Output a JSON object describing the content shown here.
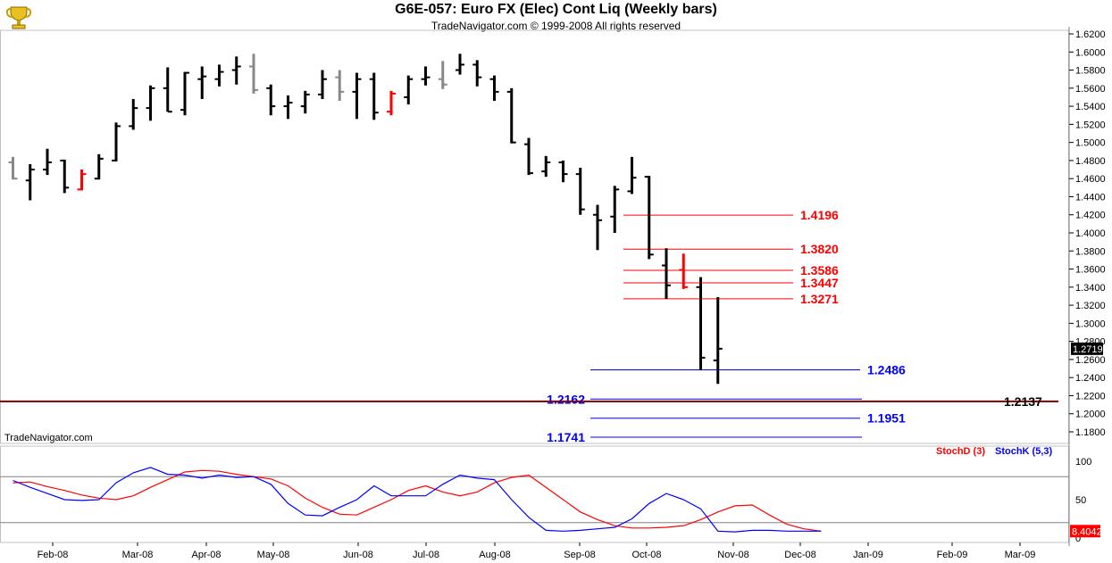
{
  "header": {
    "title": "G6E-057:  Euro FX (Elec) Cont Liq  (Weekly bars)",
    "subtitle": "TradeNavigator.com © 1999-2008 All rights reserved",
    "watermark": "TradeNavigator.com",
    "logo_icon": "trophy-icon"
  },
  "chart_data": [
    {
      "type": "ohlc",
      "yrange": [
        1.17,
        1.625
      ],
      "y_ticks": [
        "1.6200",
        "1.6000",
        "1.5800",
        "1.5600",
        "1.5400",
        "1.5200",
        "1.5000",
        "1.4800",
        "1.4600",
        "1.4400",
        "1.4200",
        "1.4000",
        "1.3800",
        "1.3600",
        "1.3400",
        "1.3200",
        "1.3000",
        "1.2800",
        "1.2600",
        "1.2400",
        "1.2200",
        "1.2000",
        "1.1800"
      ],
      "x_ticks": [
        "Feb-08",
        "Mar-08",
        "Apr-08",
        "May-08",
        "Jun-08",
        "Jul-08",
        "Aug-08",
        "Sep-08",
        "Oct-08",
        "Nov-08",
        "Dec-08",
        "Jan-09",
        "Feb-09",
        "Mar-09"
      ],
      "last_price": "1.2719",
      "bar_colors": {
        "up": "#000000",
        "down": "#000000",
        "gray": "#888888",
        "red": "#ff0000"
      },
      "bars": [
        {
          "o": 1.478,
          "h": 1.484,
          "l": 1.459,
          "c": 1.46,
          "color": "gray"
        },
        {
          "o": 1.458,
          "h": 1.476,
          "l": 1.436,
          "c": 1.47,
          "color": "black"
        },
        {
          "o": 1.47,
          "h": 1.493,
          "l": 1.464,
          "c": 1.478,
          "color": "black"
        },
        {
          "o": 1.48,
          "h": 1.481,
          "l": 1.444,
          "c": 1.45,
          "color": "black"
        },
        {
          "o": 1.448,
          "h": 1.47,
          "l": 1.447,
          "c": 1.465,
          "color": "red"
        },
        {
          "o": 1.46,
          "h": 1.487,
          "l": 1.459,
          "c": 1.482,
          "color": "black"
        },
        {
          "o": 1.48,
          "h": 1.522,
          "l": 1.479,
          "c": 1.518,
          "color": "black"
        },
        {
          "o": 1.518,
          "h": 1.548,
          "l": 1.514,
          "c": 1.538,
          "color": "black"
        },
        {
          "o": 1.538,
          "h": 1.563,
          "l": 1.524,
          "c": 1.56,
          "color": "black"
        },
        {
          "o": 1.56,
          "h": 1.583,
          "l": 1.534,
          "c": 1.534,
          "color": "black"
        },
        {
          "o": 1.536,
          "h": 1.578,
          "l": 1.53,
          "c": 1.577,
          "color": "black"
        },
        {
          "o": 1.57,
          "h": 1.584,
          "l": 1.548,
          "c": 1.573,
          "color": "black"
        },
        {
          "o": 1.57,
          "h": 1.586,
          "l": 1.562,
          "c": 1.578,
          "color": "black"
        },
        {
          "o": 1.58,
          "h": 1.595,
          "l": 1.564,
          "c": 1.584,
          "color": "black"
        },
        {
          "o": 1.584,
          "h": 1.598,
          "l": 1.554,
          "c": 1.558,
          "color": "gray"
        },
        {
          "o": 1.56,
          "h": 1.564,
          "l": 1.53,
          "c": 1.54,
          "color": "black"
        },
        {
          "o": 1.54,
          "h": 1.552,
          "l": 1.526,
          "c": 1.544,
          "color": "black"
        },
        {
          "o": 1.54,
          "h": 1.557,
          "l": 1.532,
          "c": 1.553,
          "color": "black"
        },
        {
          "o": 1.553,
          "h": 1.58,
          "l": 1.548,
          "c": 1.57,
          "color": "black"
        },
        {
          "o": 1.572,
          "h": 1.58,
          "l": 1.546,
          "c": 1.556,
          "color": "gray"
        },
        {
          "o": 1.556,
          "h": 1.577,
          "l": 1.526,
          "c": 1.57,
          "color": "black"
        },
        {
          "o": 1.57,
          "h": 1.577,
          "l": 1.525,
          "c": 1.533,
          "color": "black"
        },
        {
          "o": 1.534,
          "h": 1.557,
          "l": 1.53,
          "c": 1.554,
          "color": "red"
        },
        {
          "o": 1.55,
          "h": 1.574,
          "l": 1.542,
          "c": 1.57,
          "color": "black"
        },
        {
          "o": 1.57,
          "h": 1.584,
          "l": 1.563,
          "c": 1.572,
          "color": "black"
        },
        {
          "o": 1.57,
          "h": 1.59,
          "l": 1.559,
          "c": 1.564,
          "color": "gray"
        },
        {
          "o": 1.58,
          "h": 1.598,
          "l": 1.575,
          "c": 1.586,
          "color": "black"
        },
        {
          "o": 1.586,
          "h": 1.591,
          "l": 1.562,
          "c": 1.572,
          "color": "black"
        },
        {
          "o": 1.57,
          "h": 1.574,
          "l": 1.546,
          "c": 1.556,
          "color": "black"
        },
        {
          "o": 1.556,
          "h": 1.56,
          "l": 1.499,
          "c": 1.5,
          "color": "black"
        },
        {
          "o": 1.498,
          "h": 1.505,
          "l": 1.464,
          "c": 1.466,
          "color": "black"
        },
        {
          "o": 1.468,
          "h": 1.485,
          "l": 1.462,
          "c": 1.478,
          "color": "black"
        },
        {
          "o": 1.478,
          "h": 1.48,
          "l": 1.456,
          "c": 1.465,
          "color": "black"
        },
        {
          "o": 1.465,
          "h": 1.472,
          "l": 1.42,
          "c": 1.426,
          "color": "black"
        },
        {
          "o": 1.42,
          "h": 1.431,
          "l": 1.381,
          "c": 1.414,
          "color": "black"
        },
        {
          "o": 1.418,
          "h": 1.452,
          "l": 1.4,
          "c": 1.448,
          "color": "black"
        },
        {
          "o": 1.446,
          "h": 1.484,
          "l": 1.443,
          "c": 1.461,
          "color": "black"
        },
        {
          "o": 1.462,
          "h": 1.463,
          "l": 1.371,
          "c": 1.376,
          "color": "black"
        },
        {
          "o": 1.364,
          "h": 1.383,
          "l": 1.327,
          "c": 1.342,
          "color": "black"
        },
        {
          "o": 1.359,
          "h": 1.377,
          "l": 1.338,
          "c": 1.34,
          "color": "red"
        },
        {
          "o": 1.34,
          "h": 1.351,
          "l": 1.248,
          "c": 1.262,
          "color": "black"
        },
        {
          "o": 1.259,
          "h": 1.329,
          "l": 1.233,
          "c": 1.2719,
          "color": "black"
        }
      ]
    },
    {
      "type": "levels",
      "red_levels": [
        "1.4196",
        "1.3820",
        "1.3586",
        "1.3447",
        "1.3271"
      ],
      "blue_levels": [
        "1.2486",
        "1.2162",
        "1.1951",
        "1.1741"
      ],
      "support_level": "1.2137",
      "colors": {
        "red": "#ff0000",
        "blue": "#0000ff",
        "support": "#800000"
      }
    },
    {
      "type": "line",
      "legend": [
        "StochD (3)",
        "StochK (5,3)"
      ],
      "y_ticks": [
        "100",
        "50",
        "0"
      ],
      "yrange": [
        0,
        110
      ],
      "reference_lines": [
        80,
        20
      ],
      "last_value": "8.4042",
      "series": [
        {
          "name": "StochD (3)",
          "color": "#ff0000",
          "values": [
            72,
            73,
            67,
            62,
            56,
            52,
            50,
            55,
            66,
            76,
            86,
            88,
            87,
            83,
            80,
            77,
            68,
            52,
            40,
            31,
            30,
            40,
            50,
            62,
            68,
            60,
            55,
            60,
            72,
            79,
            82,
            66,
            50,
            34,
            24,
            16,
            13,
            13,
            14,
            16,
            24,
            34,
            42,
            43,
            30,
            18,
            12,
            9
          ]
        },
        {
          "name": "StochK (5,3)",
          "color": "#0000ff",
          "values": [
            75,
            66,
            58,
            50,
            49,
            50,
            72,
            85,
            92,
            83,
            82,
            78,
            82,
            79,
            80,
            70,
            45,
            30,
            29,
            40,
            50,
            68,
            55,
            55,
            55,
            70,
            82,
            78,
            76,
            50,
            27,
            10,
            9,
            10,
            12,
            14,
            25,
            45,
            58,
            50,
            38,
            9,
            8,
            10,
            10,
            9,
            9,
            9
          ]
        }
      ]
    }
  ]
}
